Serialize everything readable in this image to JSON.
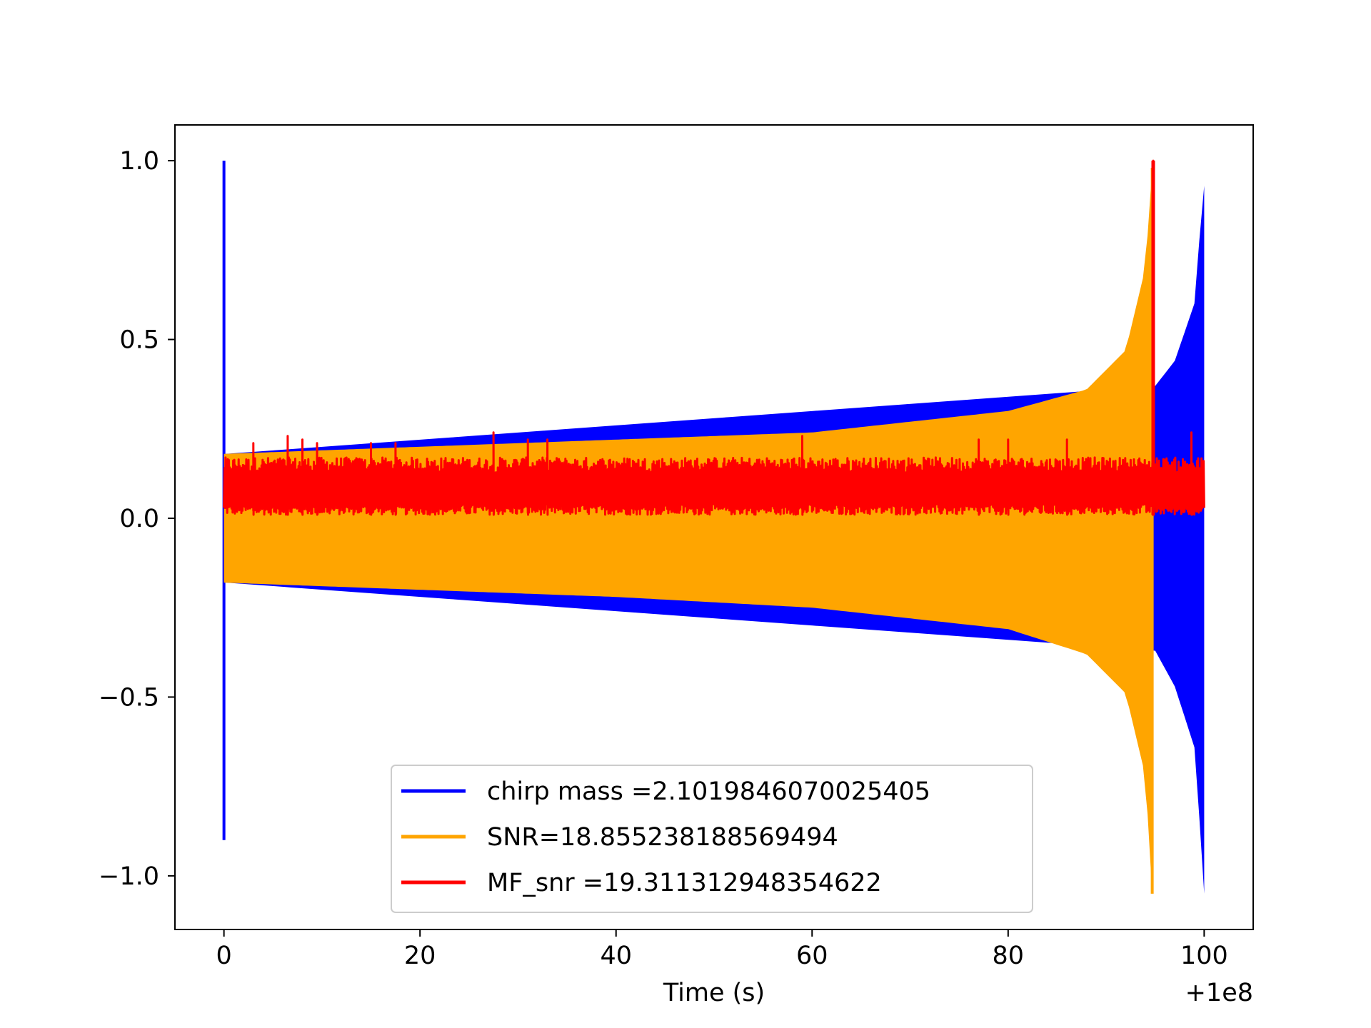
{
  "chart_data": {
    "type": "line",
    "title": "",
    "xlabel": "Time (s)",
    "ylabel": "",
    "x_offset_label": "+1e8",
    "xlim": [
      -5,
      105
    ],
    "ylim": [
      -1.15,
      1.1
    ],
    "x_ticks": [
      0,
      20,
      40,
      60,
      80,
      100
    ],
    "x_tick_labels": [
      "0",
      "20",
      "40",
      "60",
      "80",
      "100"
    ],
    "y_ticks": [
      -1.0,
      -0.5,
      0.0,
      0.5,
      1.0
    ],
    "y_tick_labels": [
      "−1.0",
      "−0.5",
      "0.0",
      "0.5",
      "1.0"
    ],
    "grid": false,
    "legend_position": "lower-center",
    "series": [
      {
        "name": "chirp mass =2.1019846070025405",
        "color": "#0000ff",
        "x_range": [
          0,
          100
        ],
        "initial_spike": {
          "x": 0,
          "max": 1.0,
          "min": -0.9
        },
        "envelope": [
          {
            "x": 0.2,
            "upper": 0.18,
            "lower": -0.18
          },
          {
            "x": 95,
            "upper": 0.37,
            "lower": -0.37
          },
          {
            "x": 97,
            "upper": 0.44,
            "lower": -0.47
          },
          {
            "x": 99,
            "upper": 0.6,
            "lower": -0.64
          },
          {
            "x": 99.8,
            "upper": 0.88,
            "lower": -0.95
          },
          {
            "x": 100,
            "upper": 0.93,
            "lower": -1.05
          }
        ]
      },
      {
        "name": "SNR=18.855238188569494",
        "color": "#ffa500",
        "x_range": [
          0,
          95
        ],
        "envelope": [
          {
            "x": 0,
            "upper": 0.18,
            "lower": -0.18
          },
          {
            "x": 20,
            "upper": 0.2,
            "lower": -0.2
          },
          {
            "x": 40,
            "upper": 0.22,
            "lower": -0.22
          },
          {
            "x": 60,
            "upper": 0.24,
            "lower": -0.25
          },
          {
            "x": 80,
            "upper": 0.3,
            "lower": -0.31
          },
          {
            "x": 88,
            "upper": 0.36,
            "lower": -0.38
          },
          {
            "x": 92,
            "upper": 0.47,
            "lower": -0.49
          },
          {
            "x": 94,
            "upper": 0.7,
            "lower": -0.72
          },
          {
            "x": 94.7,
            "upper": 0.98,
            "lower": -1.05
          }
        ]
      },
      {
        "name": "MF_snr =19.311312948354622",
        "color": "#ff0000",
        "x_range": [
          0,
          100
        ],
        "baseline": 0.01,
        "typical_max": 0.17,
        "noise_peaks": [
          {
            "x": 3,
            "y": 0.21
          },
          {
            "x": 6.5,
            "y": 0.23
          },
          {
            "x": 8,
            "y": 0.22
          },
          {
            "x": 9.5,
            "y": 0.21
          },
          {
            "x": 15,
            "y": 0.21
          },
          {
            "x": 17.5,
            "y": 0.21
          },
          {
            "x": 27.5,
            "y": 0.24
          },
          {
            "x": 31,
            "y": 0.22
          },
          {
            "x": 33,
            "y": 0.22
          },
          {
            "x": 59,
            "y": 0.23
          },
          {
            "x": 77,
            "y": 0.22
          },
          {
            "x": 80,
            "y": 0.22
          },
          {
            "x": 86,
            "y": 0.22
          }
        ],
        "peak": {
          "x": 94.8,
          "y": 1.0
        },
        "tail_peak": {
          "x": 98.7,
          "y": 0.24
        }
      }
    ]
  }
}
